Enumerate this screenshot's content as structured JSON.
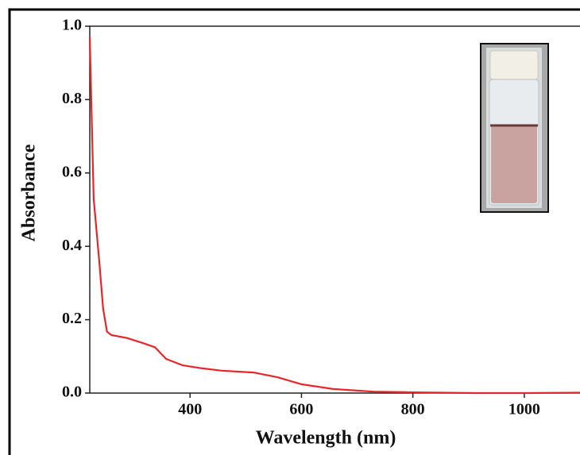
{
  "chart_data": {
    "type": "line",
    "xlabel": "Wavelength (nm)",
    "ylabel": "Absorbance",
    "x": [
      220,
      227,
      237,
      244,
      251,
      259,
      287,
      316,
      337,
      357,
      386,
      414,
      457,
      514,
      557,
      600,
      657,
      729,
      800,
      914,
      1000,
      1100
    ],
    "series": [
      {
        "color": "#e8262a",
        "values": [
          0.97,
          0.53,
          0.36,
          0.23,
          0.167,
          0.158,
          0.15,
          0.136,
          0.125,
          0.093,
          0.076,
          0.069,
          0.061,
          0.056,
          0.043,
          0.024,
          0.011,
          0.004,
          0.002,
          0.0,
          0.0,
          0.001
        ]
      }
    ],
    "xlim": [
      220,
      1100
    ],
    "ylim": [
      0,
      1
    ],
    "xticks": [
      400,
      600,
      800,
      1000
    ],
    "yticks": [
      {
        "value": 0,
        "label": "0.0"
      },
      0.2,
      0.4,
      0.6,
      0.8,
      {
        "value": 1,
        "label": "1.0"
      }
    ]
  }
}
